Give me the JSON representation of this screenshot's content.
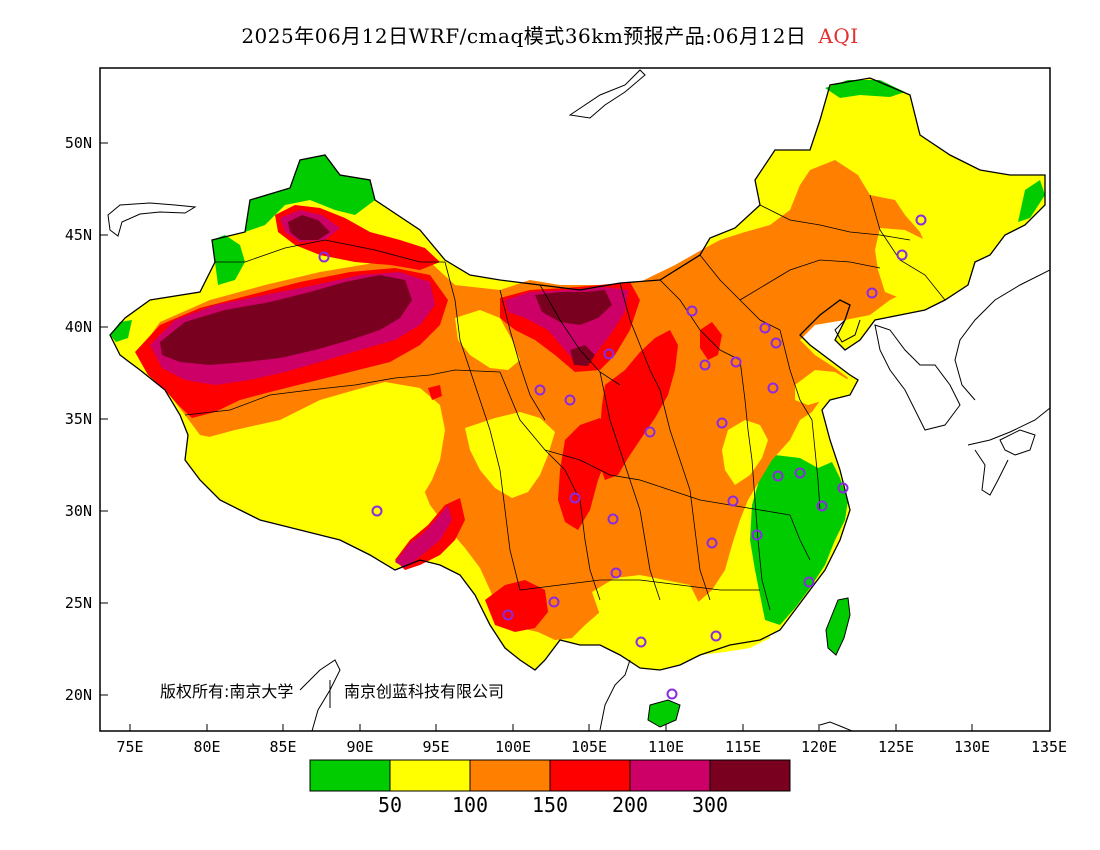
{
  "title": {
    "main": "2025年06月12日WRF/cmaq模式36km预报产品:06月12日",
    "product": "AQI"
  },
  "axes": {
    "x_ticks": [
      "75E",
      "80E",
      "85E",
      "90E",
      "95E",
      "100E",
      "105E",
      "110E",
      "115E",
      "120E",
      "125E",
      "130E",
      "135E"
    ],
    "y_ticks": [
      "50N",
      "45N",
      "40N",
      "35N",
      "30N",
      "25N",
      "20N"
    ]
  },
  "copyright": {
    "text1": "版权所有:南京大学",
    "text2": "南京创蓝科技有限公司"
  },
  "legend": {
    "colors": [
      "#00cc00",
      "#ffff00",
      "#ff8000",
      "#ff0000",
      "#cc0066",
      "#7a0020"
    ],
    "labels": [
      "50",
      "100",
      "150",
      "200",
      "300"
    ]
  },
  "colors": {
    "good": "#00cc00",
    "moderate": "#ffff00",
    "usg": "#ff8000",
    "unhealthy": "#ff0000",
    "very_unhealthy": "#cc0066",
    "hazardous": "#7a0020",
    "station": "#8a2be2"
  }
}
